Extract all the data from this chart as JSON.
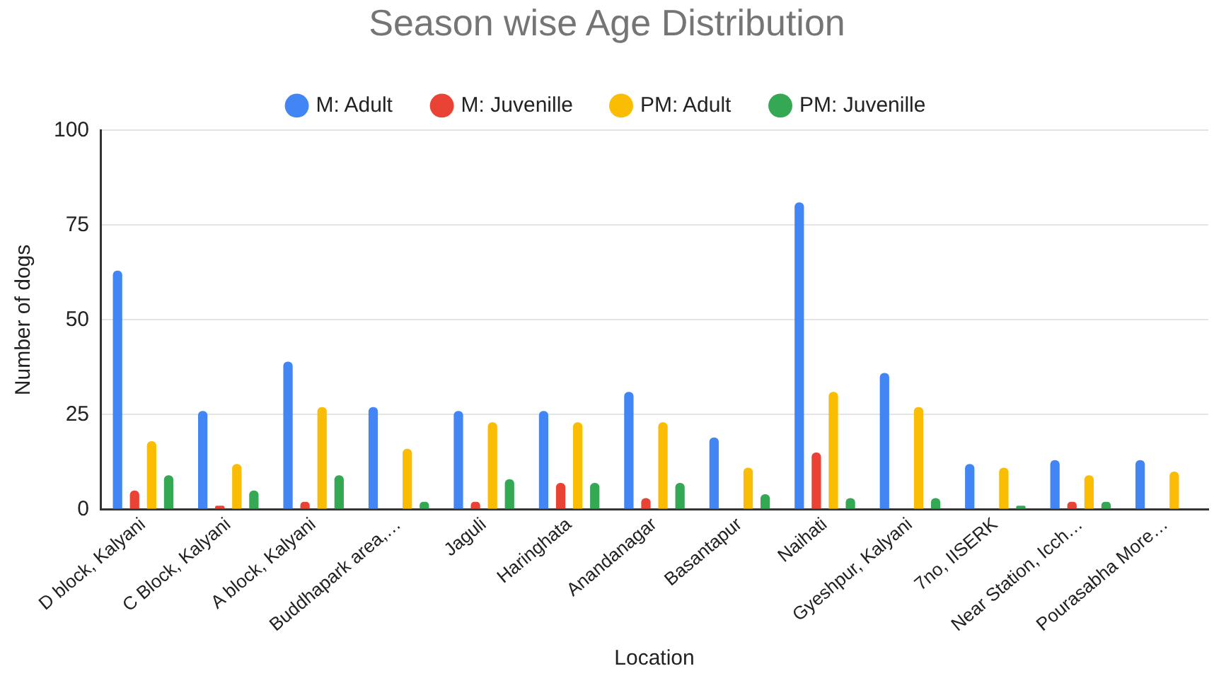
{
  "chart_data": {
    "type": "bar",
    "title": "Season wise Age Distribution",
    "xlabel": "Location",
    "ylabel": "Number of dogs",
    "categories": [
      "D block, Kalyani",
      "C Block, Kalyani",
      "A block, Kalyani",
      "Buddhapark area,…",
      "Jaguli",
      "Haringhata",
      "Anandanagar",
      "Basantapur",
      "Naihati",
      "Gyeshpur, Kalyani",
      "7no, IISERK",
      "Near Station, Icch…",
      "Pourasabha More…"
    ],
    "series": [
      {
        "name": "M: Adult",
        "color": "#4285f4",
        "values": [
          63,
          26,
          39,
          27,
          26,
          26,
          31,
          19,
          81,
          36,
          12,
          13,
          13
        ]
      },
      {
        "name": "M: Juvenille",
        "color": "#ea4335",
        "values": [
          5,
          1,
          2,
          0,
          2,
          7,
          3,
          0,
          15,
          0,
          0,
          2,
          0
        ]
      },
      {
        "name": "PM: Adult",
        "color": "#fbbc04",
        "values": [
          18,
          12,
          27,
          16,
          23,
          23,
          23,
          11,
          31,
          27,
          11,
          9,
          10
        ]
      },
      {
        "name": "PM: Juvenille",
        "color": "#34a853",
        "values": [
          9,
          5,
          9,
          2,
          8,
          7,
          7,
          4,
          3,
          3,
          1,
          2,
          0
        ]
      }
    ],
    "ylim": [
      0,
      100
    ],
    "yticks": [
      0,
      25,
      50,
      75,
      100
    ],
    "grid": "y",
    "legend": "top"
  }
}
